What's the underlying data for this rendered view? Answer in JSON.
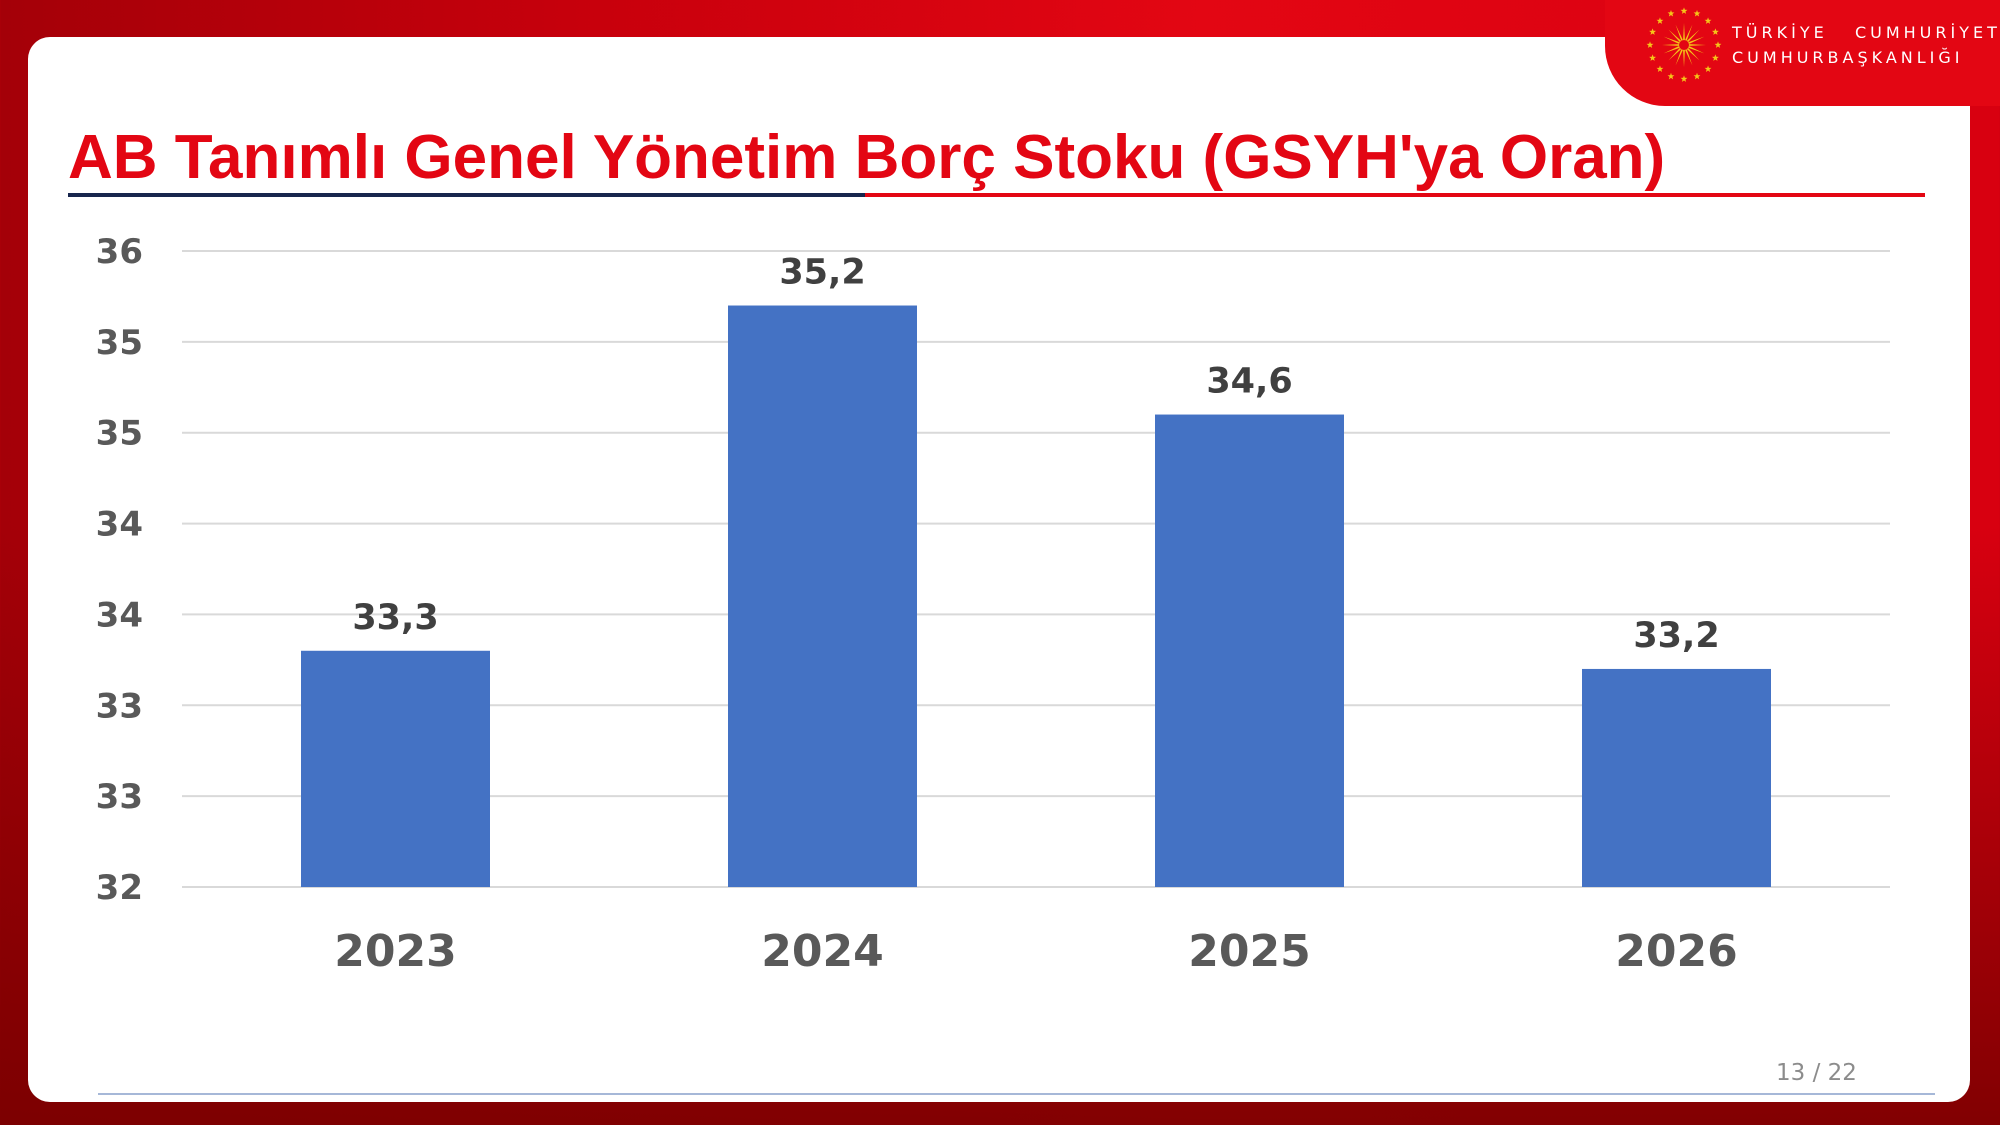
{
  "header": {
    "brand_line1": "TÜRKİYE   CUMHURİYETİ",
    "brand_line2": "CUMHURBAŞKANLIĞI",
    "logo_icon": "presidential-seal-sun-stars-icon"
  },
  "slide": {
    "title": "AB Tanımlı Genel Yönetim Borç Stoku (GSYH'ya Oran)",
    "page_number": "13 / 22"
  },
  "colors": {
    "bar": "#4472c4",
    "title": "#e30613",
    "background": "#e30613"
  },
  "chart_data": {
    "type": "bar",
    "title": "",
    "xlabel": "",
    "ylabel": "",
    "categories": [
      "2023",
      "2024",
      "2025",
      "2026"
    ],
    "values": [
      33.3,
      35.2,
      34.6,
      33.2
    ],
    "data_labels": [
      "33,3",
      "35,2",
      "34,6",
      "33,2"
    ],
    "ylim": [
      32,
      35.5
    ],
    "ytick_values": [
      32,
      32.5,
      33,
      33.5,
      34,
      34.5,
      35,
      35.5
    ],
    "ytick_labels": [
      "32",
      "33",
      "33",
      "34",
      "34",
      "35",
      "35",
      "36"
    ],
    "grid": true,
    "legend": "none"
  }
}
